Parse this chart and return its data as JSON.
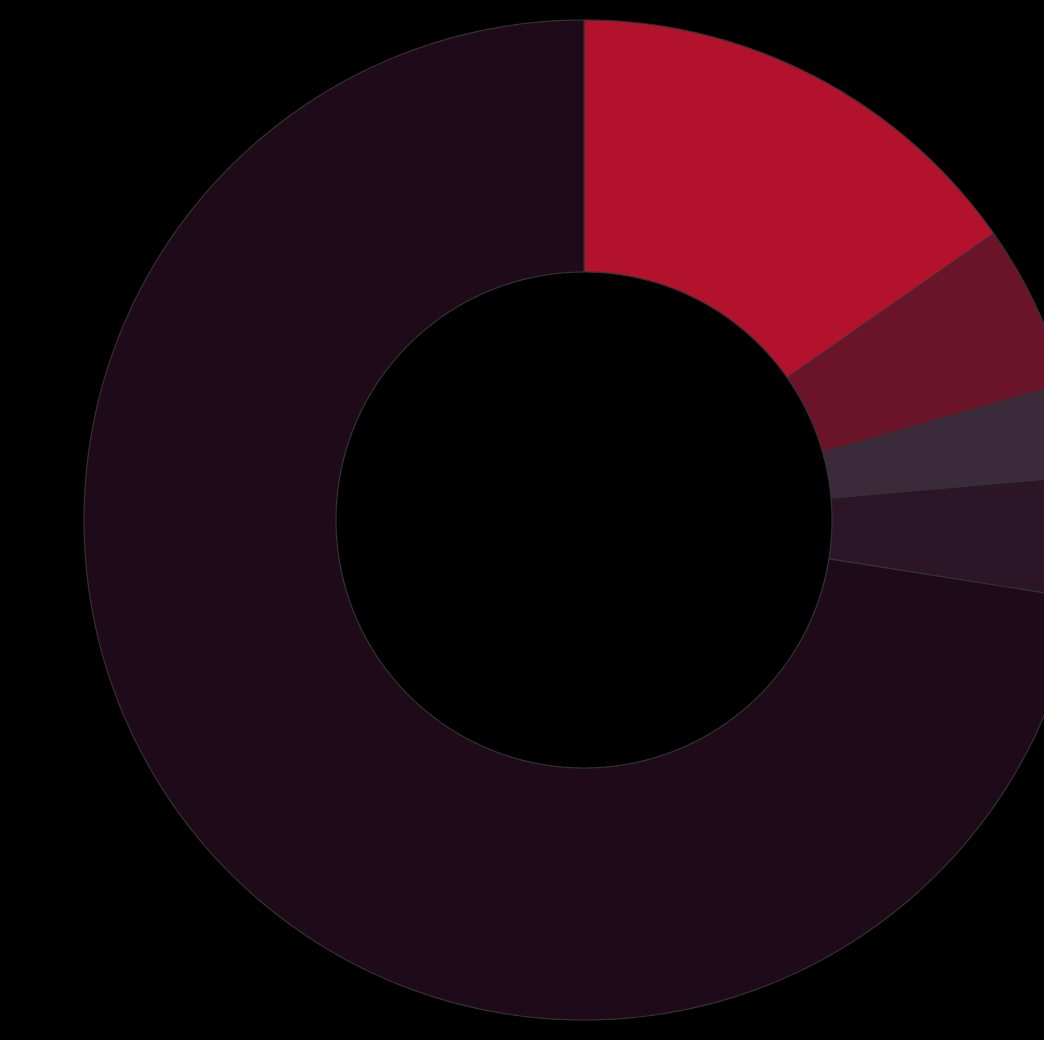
{
  "chart_data": {
    "type": "donut",
    "categories": [
      null,
      null,
      null,
      null,
      null
    ],
    "values": [
      15.3,
      5.3,
      3.0,
      3.9,
      72.5
    ],
    "colors": [
      "#b3122c",
      "#6b1429",
      "#3b2a39",
      "#2b1526",
      "#1e0a19"
    ]
  }
}
